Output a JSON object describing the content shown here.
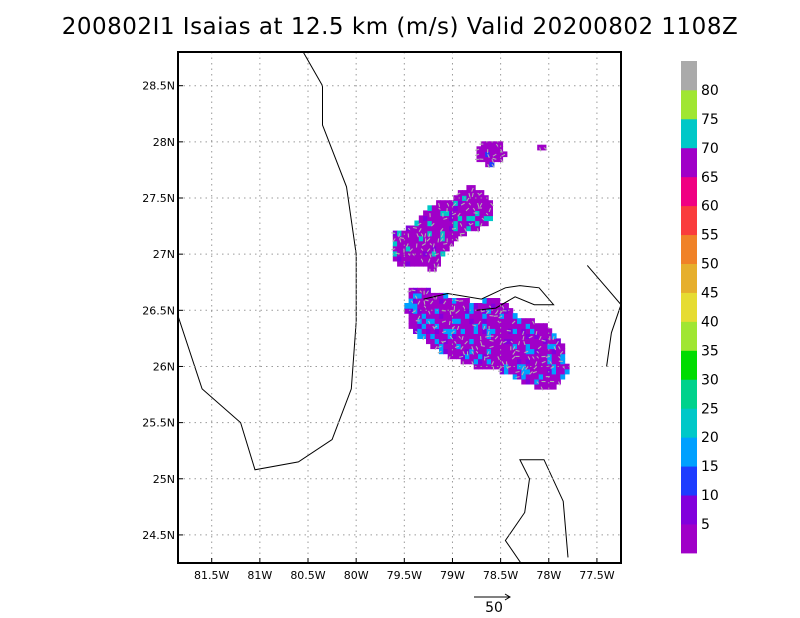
{
  "title": "200802I1 Isaias at 12.5 km (m/s) Valid 20200802 1108Z",
  "chart_data": {
    "type": "heatmap",
    "title": "200802I1 Isaias at 12.5 km (m/s) Valid 20200802 1108Z",
    "xlabel": "",
    "ylabel": "",
    "xlim": [
      -81.85,
      -77.25
    ],
    "ylim": [
      24.25,
      28.8
    ],
    "grid": true,
    "x_ticks": [
      {
        "value": -81.5,
        "label": "81.5W"
      },
      {
        "value": -81.0,
        "label": "81W"
      },
      {
        "value": -80.5,
        "label": "80.5W"
      },
      {
        "value": -80.0,
        "label": "80W"
      },
      {
        "value": -79.5,
        "label": "79.5W"
      },
      {
        "value": -79.0,
        "label": "79W"
      },
      {
        "value": -78.5,
        "label": "78.5W"
      },
      {
        "value": -78.0,
        "label": "78W"
      },
      {
        "value": -77.5,
        "label": "77.5W"
      }
    ],
    "y_ticks": [
      {
        "value": 24.5,
        "label": "24.5N"
      },
      {
        "value": 25.0,
        "label": "25N"
      },
      {
        "value": 25.5,
        "label": "25.5N"
      },
      {
        "value": 26.0,
        "label": "26N"
      },
      {
        "value": 26.5,
        "label": "26.5N"
      },
      {
        "value": 27.0,
        "label": "27N"
      },
      {
        "value": 27.5,
        "label": "27.5N"
      },
      {
        "value": 28.0,
        "label": "28N"
      },
      {
        "value": 28.5,
        "label": "28.5N"
      }
    ],
    "colorbar": {
      "labels": [
        "5",
        "10",
        "15",
        "20",
        "25",
        "30",
        "35",
        "40",
        "45",
        "50",
        "55",
        "60",
        "65",
        "70",
        "75",
        "80"
      ],
      "colors": [
        "#a000c8",
        "#8200dc",
        "#1e3cff",
        "#00a0ff",
        "#00c8c8",
        "#00d28c",
        "#00dc00",
        "#a0e632",
        "#e6dc32",
        "#e6af2d",
        "#f08228",
        "#fa3c3c",
        "#f00082",
        "#a000c8",
        "#00c8c8",
        "#a0e632",
        "#aaaaaa"
      ]
    },
    "vector_reference": {
      "label": "50",
      "value": 50
    },
    "wind_regions": [
      {
        "name": "north",
        "polygon": [
          [
            -79.62,
            27.18
          ],
          [
            -79.38,
            27.28
          ],
          [
            -79.2,
            27.45
          ],
          [
            -79.0,
            27.5
          ],
          [
            -78.82,
            27.62
          ],
          [
            -78.65,
            27.55
          ],
          [
            -78.55,
            27.42
          ],
          [
            -78.65,
            27.25
          ],
          [
            -78.85,
            27.2
          ],
          [
            -79.05,
            27.05
          ],
          [
            -79.2,
            26.85
          ],
          [
            -79.4,
            26.9
          ],
          [
            -79.62,
            26.92
          ]
        ],
        "dominant_speed": 65,
        "accent_speed": 20
      },
      {
        "name": "north-cap",
        "polygon": [
          [
            -78.75,
            27.98
          ],
          [
            -78.5,
            28.0
          ],
          [
            -78.45,
            27.88
          ],
          [
            -78.6,
            27.78
          ],
          [
            -78.75,
            27.85
          ]
        ],
        "dominant_speed": 65,
        "accent_speed": 10
      },
      {
        "name": "south",
        "polygon": [
          [
            -79.45,
            26.72
          ],
          [
            -79.1,
            26.65
          ],
          [
            -78.8,
            26.58
          ],
          [
            -78.5,
            26.6
          ],
          [
            -78.3,
            26.45
          ],
          [
            -78.05,
            26.38
          ],
          [
            -77.85,
            26.2
          ],
          [
            -77.8,
            25.95
          ],
          [
            -77.95,
            25.8
          ],
          [
            -78.15,
            25.82
          ],
          [
            -78.45,
            25.95
          ],
          [
            -78.7,
            25.98
          ],
          [
            -78.95,
            26.05
          ],
          [
            -79.2,
            26.15
          ],
          [
            -79.4,
            26.3
          ],
          [
            -79.5,
            26.5
          ]
        ],
        "dominant_speed": 65,
        "accent_speed": 15
      },
      {
        "name": "small-north",
        "polygon": [
          [
            -78.12,
            27.98
          ],
          [
            -78.06,
            28.0
          ],
          [
            -78.05,
            27.94
          ],
          [
            -78.12,
            27.93
          ]
        ],
        "dominant_speed": 65,
        "accent_speed": 10
      }
    ]
  }
}
